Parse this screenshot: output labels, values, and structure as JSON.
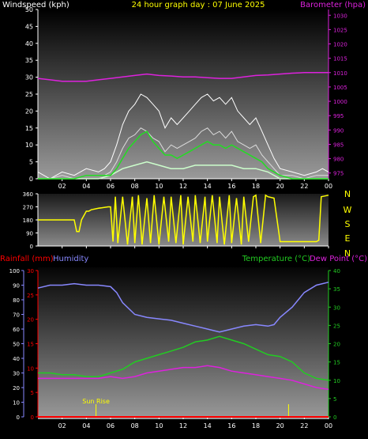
{
  "title": "24 hour graph day : 07 June 2025",
  "colors": {
    "wind": "#ffffff",
    "gust": "#ffffff",
    "wind_avg": "#22dd22",
    "wind_light": "#ccffcc",
    "baro": "#dd22dd",
    "dir": "#ffff00",
    "rain": "#ff0000",
    "humidity": "#8888ff",
    "temperature": "#22cc22",
    "dewpoint": "#dd22dd",
    "sunrise": "#ffff00",
    "axis": "#ffffff"
  },
  "chart_data": [
    {
      "type": "line",
      "name": "wind_baro",
      "title": "24 hour graph day : 07 June 2025",
      "ylabel_left": "Windspeed (kph)",
      "ylabel_right": "Barometer (hpa)",
      "x_ticks": [
        "02",
        "04",
        "06",
        "08",
        "10",
        "12",
        "14",
        "16",
        "18",
        "20",
        "22",
        "00"
      ],
      "y_left_ticks": [
        "0",
        "5",
        "10",
        "15",
        "20",
        "25",
        "30",
        "35",
        "40",
        "45",
        "50"
      ],
      "y_left_range": [
        0,
        50
      ],
      "y_right_ticks": [
        "975",
        "980",
        "985",
        "990",
        "995",
        "1000",
        "1005",
        "1010",
        "1015",
        "1020",
        "1025",
        "1030"
      ],
      "y_right_range": [
        973,
        1032
      ],
      "x_range": [
        0,
        24
      ],
      "series": [
        {
          "name": "Barometer",
          "axis": "right",
          "x": [
            0,
            1,
            2,
            3,
            4,
            5,
            6,
            7,
            8,
            9,
            10,
            11,
            12,
            13,
            14,
            15,
            16,
            17,
            18,
            19,
            20,
            21,
            22,
            23,
            24
          ],
          "values": [
            1008,
            1007.5,
            1007,
            1007,
            1007,
            1007.5,
            1008,
            1008.5,
            1009,
            1009.5,
            1009,
            1008.8,
            1008.5,
            1008.5,
            1008.2,
            1008,
            1008,
            1008.5,
            1009,
            1009.2,
            1009.5,
            1009.8,
            1010,
            1010,
            1010
          ]
        },
        {
          "name": "Gust",
          "axis": "left",
          "x": [
            0,
            1,
            2,
            3,
            4,
            5,
            5.5,
            6,
            6.5,
            7,
            7.5,
            8,
            8.5,
            9,
            9.5,
            10,
            10.5,
            11,
            11.5,
            12,
            12.5,
            13,
            13.5,
            14,
            14.5,
            15,
            15.5,
            16,
            16.5,
            17,
            17.5,
            18,
            18.5,
            19,
            19.5,
            20,
            21,
            22,
            23,
            23.5,
            24
          ],
          "values": [
            2,
            0,
            2,
            1,
            3,
            2,
            3,
            5,
            10,
            16,
            20,
            22,
            25,
            24,
            22,
            20,
            15,
            18,
            16,
            18,
            20,
            22,
            24,
            25,
            23,
            24,
            22,
            24,
            20,
            18,
            16,
            18,
            14,
            10,
            6,
            3,
            2,
            1,
            2,
            3,
            2
          ]
        },
        {
          "name": "Wind",
          "axis": "left",
          "x": [
            0,
            1,
            2,
            3,
            4,
            5,
            5.5,
            6,
            6.5,
            7,
            7.5,
            8,
            8.5,
            9,
            9.5,
            10,
            10.5,
            11,
            11.5,
            12,
            12.5,
            13,
            13.5,
            14,
            14.5,
            15,
            15.5,
            16,
            16.5,
            17,
            17.5,
            18,
            18.5,
            19,
            19.5,
            20,
            21,
            22,
            23,
            23.5,
            24
          ],
          "values": [
            0,
            0,
            1,
            0,
            1,
            1,
            1,
            2,
            5,
            9,
            12,
            13,
            15,
            14,
            12,
            11,
            8,
            10,
            9,
            10,
            11,
            12,
            14,
            15,
            13,
            14,
            12,
            14,
            11,
            10,
            9,
            10,
            7,
            5,
            3,
            1,
            1,
            0,
            1,
            1,
            1
          ]
        },
        {
          "name": "Average",
          "axis": "left",
          "x": [
            0,
            1,
            2,
            3,
            4,
            5,
            6,
            6.5,
            7,
            7.5,
            8,
            8.5,
            9,
            9.5,
            10,
            10.5,
            11,
            11.5,
            12,
            12.5,
            13,
            13.5,
            14,
            14.5,
            15,
            15.5,
            16,
            16.5,
            17,
            17.5,
            18,
            18.5,
            19,
            20,
            21,
            22,
            23,
            24
          ],
          "values": [
            0,
            0,
            0,
            0,
            1,
            1,
            1,
            3,
            6,
            9,
            11,
            13,
            14,
            11,
            9,
            7,
            7,
            6,
            7,
            8,
            9,
            10,
            11,
            10,
            10,
            9,
            10,
            9,
            8,
            7,
            6,
            5,
            3,
            1,
            0,
            0,
            0,
            0
          ]
        },
        {
          "name": "Minimum",
          "axis": "left",
          "x": [
            0,
            1,
            2,
            3,
            4,
            5,
            6,
            7,
            8,
            9,
            10,
            11,
            12,
            13,
            14,
            15,
            16,
            17,
            18,
            19,
            20,
            21,
            22,
            23,
            24
          ],
          "values": [
            0,
            0,
            0,
            0,
            0,
            0,
            1,
            3,
            4,
            5,
            4,
            3,
            3,
            4,
            4,
            4,
            4,
            3,
            3,
            2,
            0,
            0,
            0,
            0,
            0
          ]
        }
      ]
    },
    {
      "type": "line",
      "name": "wind_direction",
      "x_ticks": [
        "02",
        "04",
        "06",
        "08",
        "10",
        "12",
        "14",
        "16",
        "18",
        "20",
        "22",
        "00"
      ],
      "y_left_ticks": [
        "0",
        "90",
        "180",
        "270",
        "360"
      ],
      "y_right_labels": [
        "N",
        "W",
        "S",
        "E",
        "N"
      ],
      "y_range": [
        0,
        360
      ],
      "x_range": [
        0,
        24
      ],
      "series": [
        {
          "name": "Direction",
          "x": [
            0,
            1,
            2,
            3,
            3.2,
            3.4,
            3.6,
            4,
            4.2,
            4.4,
            5,
            5.8,
            6,
            6.2,
            6.4,
            6.6,
            7,
            7.4,
            7.8,
            8,
            8.3,
            8.6,
            9,
            9.3,
            9.6,
            10,
            10.4,
            10.8,
            11,
            11.4,
            11.8,
            12,
            12.4,
            12.8,
            13,
            13.4,
            13.8,
            14,
            14.4,
            14.8,
            15,
            15.4,
            15.8,
            16,
            16.4,
            16.8,
            17,
            17.4,
            17.8,
            18,
            18.4,
            18.8,
            19,
            19.5,
            20,
            21,
            22,
            23,
            23.2,
            23.4,
            24
          ],
          "values": [
            180,
            180,
            180,
            180,
            100,
            100,
            180,
            240,
            240,
            250,
            260,
            270,
            270,
            30,
            340,
            20,
            340,
            10,
            340,
            20,
            350,
            10,
            330,
            20,
            350,
            10,
            340,
            30,
            340,
            20,
            350,
            10,
            340,
            30,
            350,
            20,
            340,
            30,
            350,
            20,
            340,
            10,
            350,
            20,
            330,
            10,
            340,
            30,
            340,
            350,
            20,
            350,
            340,
            330,
            30,
            30,
            30,
            30,
            40,
            340,
            350
          ]
        }
      ]
    },
    {
      "type": "line",
      "name": "temp_hum_rain",
      "ylabel_left_1": "Rainfall (mm)",
      "ylabel_left_2": "Humidity",
      "ylabel_right_1": "Temperature (°C)",
      "ylabel_right_2": "Dew Point (°C)",
      "x_ticks": [
        "02",
        "04",
        "06",
        "08",
        "10",
        "12",
        "14",
        "16",
        "18",
        "20",
        "22",
        "00"
      ],
      "humidity_ticks": [
        "0",
        "10",
        "20",
        "30",
        "40",
        "50",
        "60",
        "70",
        "80",
        "90",
        "100"
      ],
      "rain_ticks": [
        "0",
        "5",
        "10",
        "15",
        "20",
        "25",
        "30"
      ],
      "temp_ticks": [
        "0",
        "5",
        "10",
        "15",
        "20",
        "25",
        "30",
        "35",
        "40"
      ],
      "humidity_range": [
        0,
        100
      ],
      "rain_range": [
        0,
        30
      ],
      "temp_range": [
        0,
        40
      ],
      "x_range": [
        0,
        24
      ],
      "annotation": "Sun Rise",
      "sunrise_hour": 4.8,
      "sunset_hour": 20.7,
      "series": [
        {
          "name": "Humidity",
          "axis": "humidity",
          "x": [
            0,
            1,
            2,
            3,
            4,
            5,
            6,
            6.5,
            7,
            8,
            9,
            10,
            11,
            12,
            13,
            14,
            15,
            16,
            17,
            18,
            19,
            19.5,
            20,
            21,
            22,
            23,
            24
          ],
          "values": [
            88,
            90,
            90,
            91,
            90,
            90,
            89,
            85,
            78,
            70,
            68,
            67,
            66,
            64,
            62,
            60,
            58,
            60,
            62,
            63,
            62,
            63,
            68,
            75,
            85,
            90,
            92
          ]
        },
        {
          "name": "Temperature",
          "axis": "temp",
          "x": [
            0,
            1,
            2,
            3,
            4,
            5,
            6,
            7,
            8,
            9,
            10,
            11,
            12,
            13,
            14,
            15,
            16,
            17,
            18,
            19,
            20,
            21,
            22,
            23,
            24
          ],
          "values": [
            12,
            12,
            11.5,
            11.5,
            11,
            11,
            12,
            13,
            15,
            16,
            17,
            18,
            19,
            20.5,
            21,
            22,
            21,
            20,
            18.5,
            17,
            16.5,
            15,
            12,
            10.5,
            10
          ]
        },
        {
          "name": "Dew Point",
          "axis": "temp",
          "x": [
            0,
            1,
            2,
            3,
            4,
            5,
            6,
            7,
            8,
            9,
            10,
            11,
            12,
            13,
            14,
            15,
            16,
            17,
            18,
            19,
            20,
            21,
            22,
            23,
            24
          ],
          "values": [
            10.5,
            10.5,
            10.5,
            10.5,
            10.5,
            10.5,
            11,
            10.5,
            11,
            12,
            12.5,
            13,
            13.5,
            13.5,
            14,
            13.5,
            12.5,
            12,
            11.5,
            11,
            10.5,
            10,
            9,
            8,
            7.5
          ]
        },
        {
          "name": "Rainfall",
          "axis": "rain",
          "x": [
            0,
            24
          ],
          "values": [
            0,
            0
          ]
        }
      ]
    }
  ]
}
